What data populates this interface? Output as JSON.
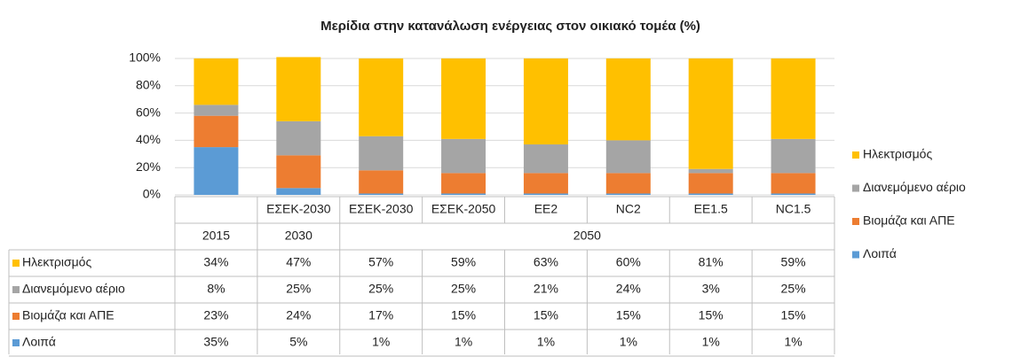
{
  "chart_data": {
    "type": "stacked_bar",
    "title": "Μερίδια  στην κατανάλωση ενέργειας στον οικιακό τομέα (%)",
    "categories": [
      null,
      "ΕΣΕΚ-2030",
      "ΕΣΕΚ-2030",
      "ΕΣΕΚ-2050",
      "ΕΕ2",
      "NC2",
      "ΕΕ1.5",
      "NC1.5"
    ],
    "category_groups": [
      {
        "label": "2015",
        "count": 1
      },
      {
        "label": "2030",
        "count": 1
      },
      {
        "label": "2050",
        "count": 6
      }
    ],
    "series": [
      {
        "name": "Ηλεκτρισμός",
        "color": "#ffc000",
        "values": [
          34,
          47,
          57,
          59,
          63,
          60,
          81,
          59
        ],
        "value_labels": [
          "34%",
          "47%",
          "57%",
          "59%",
          "63%",
          "60%",
          "81%",
          "59%"
        ]
      },
      {
        "name": "Διανεμόμενο αέριο",
        "color": "#a5a5a5",
        "values": [
          8,
          25,
          25,
          25,
          21,
          24,
          3,
          25
        ],
        "value_labels": [
          "8%",
          "25%",
          "25%",
          "25%",
          "21%",
          "24%",
          "3%",
          "25%"
        ]
      },
      {
        "name": "Βιομάζα και ΑΠΕ",
        "color": "#ed7d31",
        "values": [
          23,
          24,
          17,
          15,
          15,
          15,
          15,
          15
        ],
        "value_labels": [
          "23%",
          "24%",
          "17%",
          "15%",
          "15%",
          "15%",
          "15%",
          "15%"
        ]
      },
      {
        "name": "Λοιπά",
        "color": "#5b9bd5",
        "values": [
          35,
          5,
          1,
          1,
          1,
          1,
          1,
          1
        ],
        "value_labels": [
          "35%",
          "5%",
          "1%",
          "1%",
          "1%",
          "1%",
          "1%",
          "1%"
        ]
      }
    ],
    "ylim": [
      0,
      100
    ],
    "yticks": [
      {
        "value": 0,
        "label": "0%"
      },
      {
        "value": 20,
        "label": "20%"
      },
      {
        "value": 40,
        "label": "40%"
      },
      {
        "value": 60,
        "label": "60%"
      },
      {
        "value": 80,
        "label": "80%"
      },
      {
        "value": 100,
        "label": "100%"
      }
    ],
    "grid": true,
    "legend": "right"
  }
}
